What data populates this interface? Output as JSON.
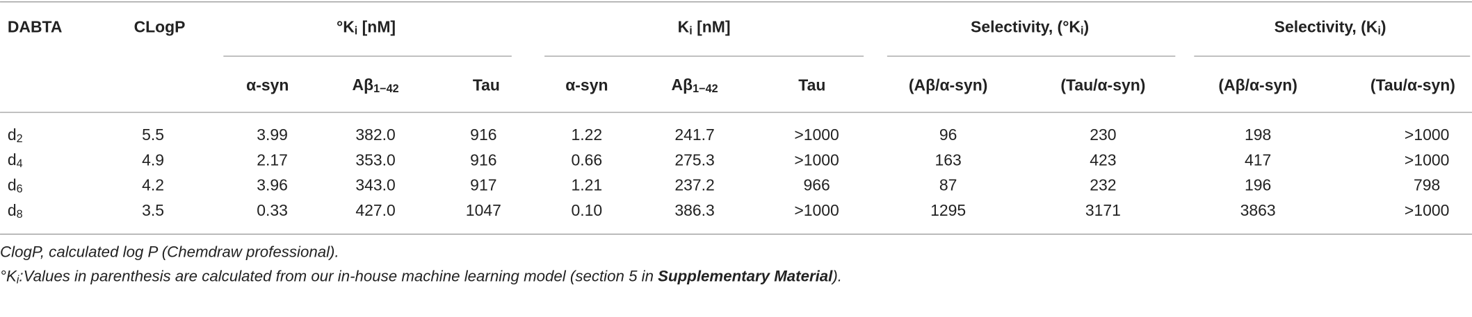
{
  "table": {
    "headers": [
      "DABTA",
      "CLogP",
      [
        "°K",
        {
          "sub": "i"
        },
        " [nM]"
      ],
      [
        "K",
        {
          "sub": "i"
        },
        " [nM]"
      ],
      [
        "Selectivity, (°K",
        {
          "sub": "i"
        },
        ")"
      ],
      [
        "Selectivity, (K",
        {
          "sub": "i"
        },
        ")"
      ]
    ],
    "subheaders": [
      "α-syn",
      [
        "Aβ",
        {
          "sub": "1−42"
        }
      ],
      "Tau",
      "α-syn",
      [
        "Aβ",
        {
          "sub": "1−42"
        }
      ],
      "Tau",
      "(Aβ/α-syn)",
      "(Tau/α-syn)",
      "(Aβ/α-syn)",
      "(Tau/α-syn)"
    ],
    "rows": [
      [
        [
          "d",
          {
            "sub": "2"
          }
        ],
        "5.5",
        "3.99",
        "382.0",
        "916",
        "1.22",
        "241.7",
        ">1000",
        "96",
        "230",
        "198",
        ">1000"
      ],
      [
        [
          "d",
          {
            "sub": "4"
          }
        ],
        "4.9",
        "2.17",
        "353.0",
        "916",
        "0.66",
        "275.3",
        ">1000",
        "163",
        "423",
        "417",
        ">1000"
      ],
      [
        [
          "d",
          {
            "sub": "6"
          }
        ],
        "4.2",
        "3.96",
        "343.0",
        "917",
        "1.21",
        "237.2",
        "966",
        "87",
        "232",
        "196",
        "798"
      ],
      [
        [
          "d",
          {
            "sub": "8"
          }
        ],
        "3.5",
        "0.33",
        "427.0",
        "1047",
        "0.10",
        "386.3",
        ">1000",
        "1295",
        "3171",
        "3863",
        ">1000"
      ]
    ],
    "footnotes": [
      "ClogP, calculated log P (Chemdraw professional).",
      [
        "°K",
        {
          "sub": "i"
        },
        ":Values in parenthesis are calculated from our in-house machine learning model (section 5 in ",
        {
          "bold": "Supplementary Material"
        },
        ")."
      ]
    ]
  }
}
